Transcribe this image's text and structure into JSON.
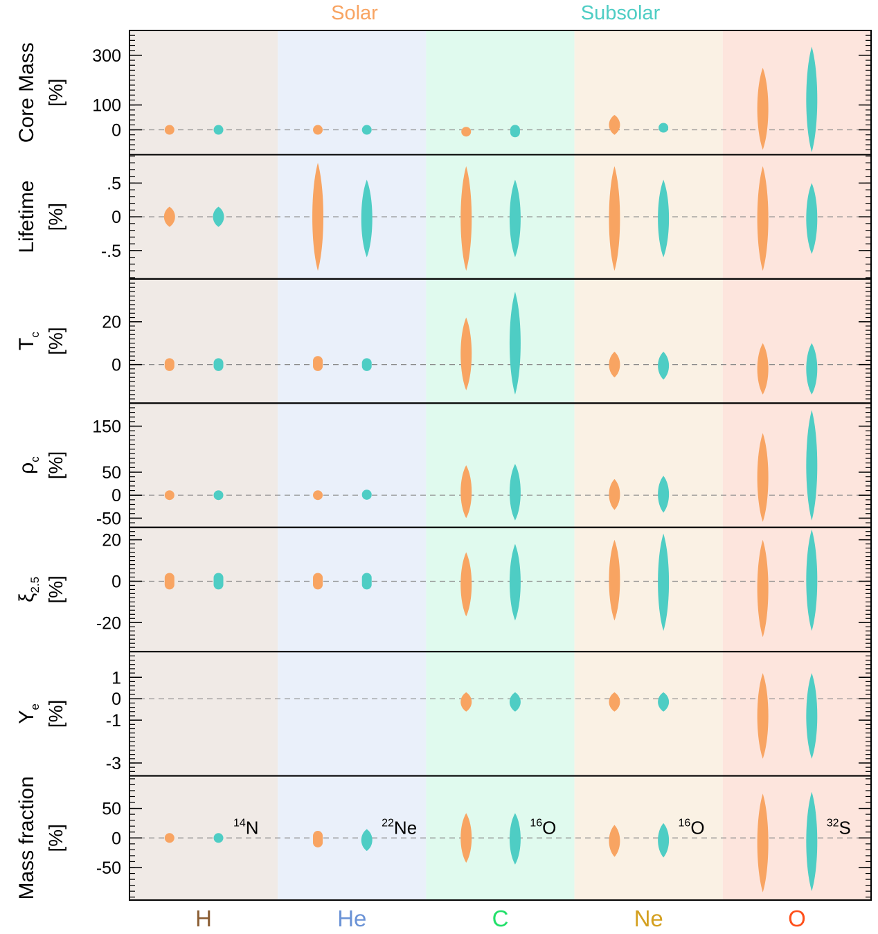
{
  "chart_data": {
    "type": "scatter",
    "legend": [
      {
        "name": "Solar",
        "color": "#F8A462"
      },
      {
        "name": "Subsolar",
        "color": "#4ECDC4"
      }
    ],
    "phases": [
      {
        "label": "H",
        "label_color": "#8B5E34",
        "bg": "#F0EAE6",
        "isotope": "14",
        "isotope_sym": "N"
      },
      {
        "label": "He",
        "label_color": "#6B93D6",
        "bg": "#EAF0FA",
        "isotope": "22",
        "isotope_sym": "Ne"
      },
      {
        "label": "C",
        "label_color": "#22E06A",
        "bg": "#E0FAEE",
        "isotope": "16",
        "isotope_sym": "O"
      },
      {
        "label": "Ne",
        "label_color": "#D4A020",
        "bg": "#FAF1E4",
        "isotope": "16",
        "isotope_sym": "O"
      },
      {
        "label": "O",
        "label_color": "#FF4F1A",
        "bg": "#FDE5DD",
        "isotope": "32",
        "isotope_sym": "S"
      }
    ],
    "panels": [
      {
        "name": "Core Mass",
        "sub": "",
        "unit": "[%]",
        "ylim": [
          -100,
          400
        ],
        "ticks": [
          {
            "v": 0,
            "l": "0"
          },
          {
            "v": 100,
            "l": "100"
          },
          {
            "v": 300,
            "l": "300"
          }
        ],
        "minor_step": 20,
        "solar": [
          [
            -8,
            8
          ],
          [
            -8,
            8
          ],
          [
            -20,
            5
          ],
          [
            -20,
            60
          ],
          [
            -80,
            250
          ]
        ],
        "subsolar": [
          [
            -8,
            8
          ],
          [
            -8,
            8
          ],
          [
            -30,
            20
          ],
          [
            -8,
            25
          ],
          [
            -90,
            335
          ]
        ]
      },
      {
        "name": "Lifetime",
        "sub": "",
        "unit": "[%]",
        "ylim": [
          -0.92,
          0.92
        ],
        "ticks": [
          {
            "v": -0.5,
            "l": "-.5"
          },
          {
            "v": 0,
            "l": "0"
          },
          {
            "v": 0.5,
            "l": ".5"
          }
        ],
        "minor_step": 0.1,
        "solar": [
          [
            -0.15,
            0.15
          ],
          [
            -0.8,
            0.8
          ],
          [
            -0.8,
            0.75
          ],
          [
            -0.8,
            0.75
          ],
          [
            -0.8,
            0.75
          ]
        ],
        "subsolar": [
          [
            -0.15,
            0.15
          ],
          [
            -0.6,
            0.55
          ],
          [
            -0.6,
            0.55
          ],
          [
            -0.6,
            0.55
          ],
          [
            -0.55,
            0.5
          ]
        ]
      },
      {
        "name": "T",
        "sub": "c",
        "unit": "[%]",
        "ylim": [
          -18,
          40
        ],
        "ticks": [
          {
            "v": 0,
            "l": "0"
          },
          {
            "v": 20,
            "l": "20"
          }
        ],
        "minor_step": 2,
        "solar": [
          [
            -3,
            3
          ],
          [
            -3,
            4
          ],
          [
            -12,
            22
          ],
          [
            -6,
            6
          ],
          [
            -14,
            10
          ]
        ],
        "subsolar": [
          [
            -3,
            3
          ],
          [
            -3,
            3
          ],
          [
            -14,
            34
          ],
          [
            -7,
            6
          ],
          [
            -14,
            10
          ]
        ]
      },
      {
        "name": "ρ",
        "sub": "c",
        "unit": "[%]",
        "ylim": [
          -70,
          200
        ],
        "ticks": [
          {
            "v": -50,
            "l": "-50"
          },
          {
            "v": 0,
            "l": "0"
          },
          {
            "v": 50,
            "l": "50"
          },
          {
            "v": 150,
            "l": "150"
          }
        ],
        "minor_step": 10,
        "solar": [
          [
            -10,
            10
          ],
          [
            -10,
            10
          ],
          [
            -50,
            65
          ],
          [
            -32,
            35
          ],
          [
            -58,
            135
          ]
        ],
        "subsolar": [
          [
            -10,
            10
          ],
          [
            -10,
            12
          ],
          [
            -55,
            68
          ],
          [
            -38,
            42
          ],
          [
            -55,
            185
          ]
        ]
      },
      {
        "name": "ξ",
        "sub": "2.5",
        "unit": "[%]",
        "ylim": [
          -34,
          26
        ],
        "ticks": [
          {
            "v": -20,
            "l": "-20"
          },
          {
            "v": 0,
            "l": "0"
          },
          {
            "v": 20,
            "l": "20"
          }
        ],
        "minor_step": 2,
        "solar": [
          [
            -4,
            4
          ],
          [
            -4,
            4
          ],
          [
            -17,
            14
          ],
          [
            -19,
            20
          ],
          [
            -27,
            20
          ]
        ],
        "subsolar": [
          [
            -4,
            4
          ],
          [
            -4,
            4
          ],
          [
            -19,
            18
          ],
          [
            -24,
            23
          ],
          [
            -24,
            25
          ]
        ]
      },
      {
        "name": "Y",
        "sub": "e",
        "unit": "[%]",
        "ylim": [
          -3.6,
          2.2
        ],
        "ticks": [
          {
            "v": -3,
            "l": "-3"
          },
          {
            "v": -1,
            "l": "-1"
          },
          {
            "v": 0,
            "l": "0"
          },
          {
            "v": 1,
            "l": "1"
          }
        ],
        "minor_step": 0.2,
        "solar": [
          null,
          null,
          [
            -0.6,
            0.3
          ],
          [
            -0.6,
            0.3
          ],
          [
            -2.8,
            1.2
          ]
        ],
        "subsolar": [
          null,
          null,
          [
            -0.6,
            0.3
          ],
          [
            -0.6,
            0.3
          ],
          [
            -2.8,
            1.2
          ]
        ]
      },
      {
        "name": "Mass fraction",
        "sub": "",
        "unit": "[%]",
        "ylim": [
          -105,
          105
        ],
        "ticks": [
          {
            "v": -50,
            "l": "-50"
          },
          {
            "v": 0,
            "l": "0"
          },
          {
            "v": 50,
            "l": "50"
          }
        ],
        "minor_step": 10,
        "solar": [
          [
            -8,
            8
          ],
          [
            -16,
            12
          ],
          [
            -42,
            42
          ],
          [
            -32,
            22
          ],
          [
            -92,
            75
          ]
        ],
        "subsolar": [
          [
            -8,
            8
          ],
          [
            -22,
            15
          ],
          [
            -45,
            42
          ],
          [
            -33,
            25
          ],
          [
            -90,
            78
          ]
        ]
      }
    ]
  }
}
